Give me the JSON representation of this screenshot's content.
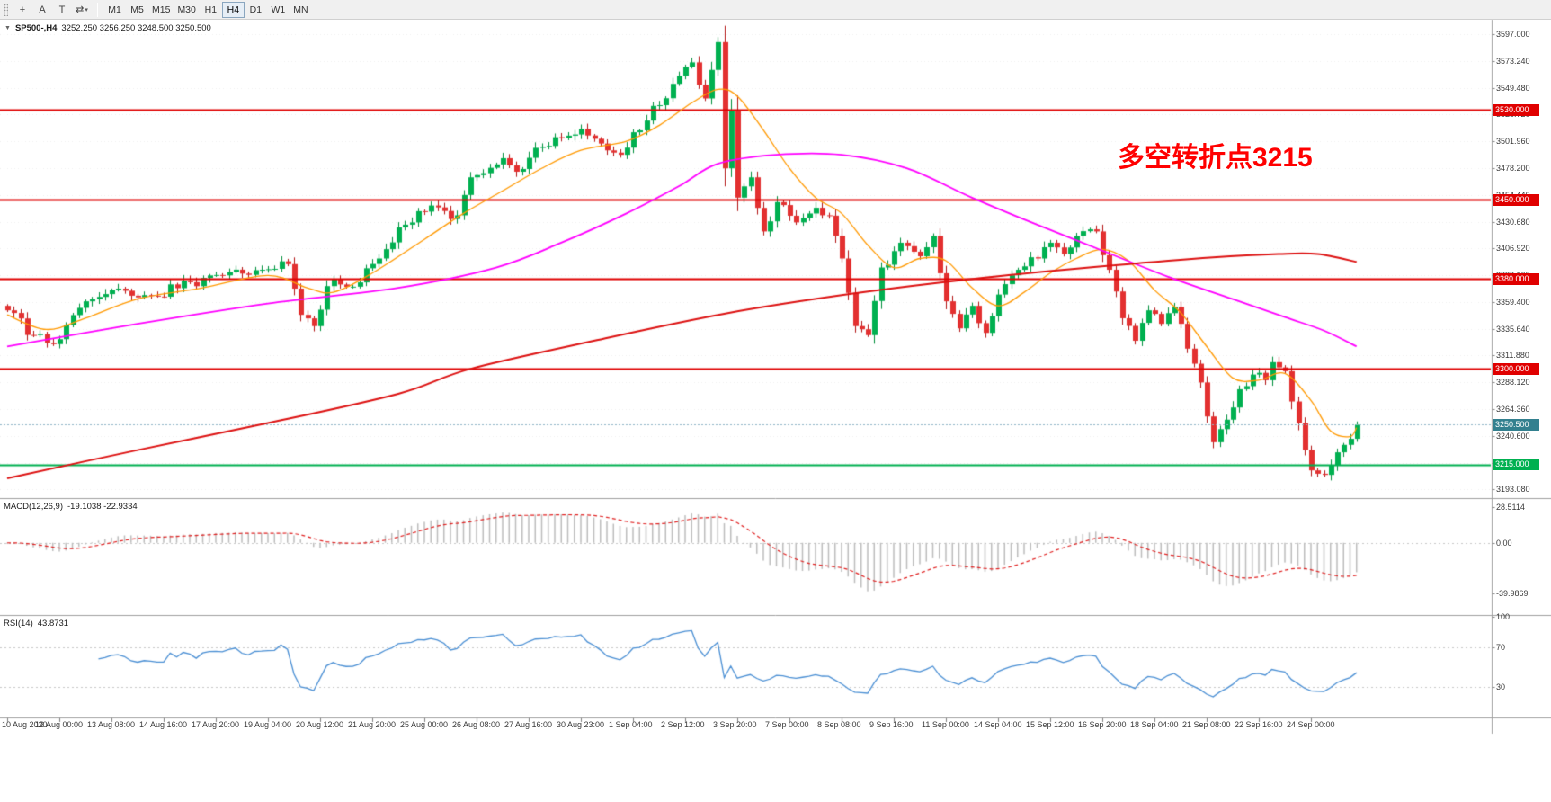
{
  "toolbar": {
    "caret_glyph": "▾",
    "tool_icons": [
      {
        "name": "crosshair-icon",
        "glyph": "+"
      },
      {
        "name": "text-label-icon",
        "glyph": "A"
      },
      {
        "name": "text-icon",
        "glyph": "T"
      },
      {
        "name": "line-studies-icon",
        "glyph": "⇄",
        "dropdown": true
      }
    ],
    "timeframes": [
      {
        "label": "M1",
        "active": false
      },
      {
        "label": "M5",
        "active": false
      },
      {
        "label": "M15",
        "active": false
      },
      {
        "label": "M30",
        "active": false
      },
      {
        "label": "H1",
        "active": false
      },
      {
        "label": "H4",
        "active": true
      },
      {
        "label": "D1",
        "active": false
      },
      {
        "label": "W1",
        "active": false
      },
      {
        "label": "MN",
        "active": false
      }
    ]
  },
  "chart": {
    "title": {
      "dropdown_glyph": "▼",
      "symbol": "SP500-,H4",
      "ohlc": "3252.250 3256.250 3248.500 3250.500"
    },
    "annotation": {
      "text": "多空转折点3215",
      "color": "#ff0000"
    }
  },
  "chart_data": {
    "type": "candlestick",
    "symbol": "SP500-",
    "timeframe": "H4",
    "bars": 208,
    "seed": 20200924,
    "noise": 4.2,
    "price_axis": {
      "min": 3187,
      "max": 3609,
      "tick_labels": [
        "3597.000",
        "3573.240",
        "3549.480",
        "3525.720",
        "3501.960",
        "3478.200",
        "3454.440",
        "3430.680",
        "3406.920",
        "3383.160",
        "3359.400",
        "3335.640",
        "3311.880",
        "3288.120",
        "3264.360",
        "3240.600",
        "3216.840",
        "3193.080"
      ]
    },
    "time_labels": [
      "10 Aug 2020",
      "12 Aug 00:00",
      "13 Aug 08:00",
      "14 Aug 16:00",
      "17 Aug 20:00",
      "19 Aug 04:00",
      "20 Aug 12:00",
      "21 Aug 20:00",
      "25 Aug 00:00",
      "26 Aug 08:00",
      "27 Aug 16:00",
      "30 Aug 23:00",
      "1 Sep 04:00",
      "2 Sep 12:00",
      "3 Sep 20:00",
      "7 Sep 00:00",
      "8 Sep 08:00",
      "9 Sep 16:00",
      "11 Sep 00:00",
      "14 Sep 04:00",
      "15 Sep 12:00",
      "16 Sep 20:00",
      "18 Sep 04:00",
      "21 Sep 08:00",
      "22 Sep 16:00",
      "24 Sep 00:00"
    ],
    "close_path_anchors": [
      [
        0,
        3352
      ],
      [
        4,
        3330
      ],
      [
        7,
        3322
      ],
      [
        12,
        3360
      ],
      [
        16,
        3370
      ],
      [
        22,
        3365
      ],
      [
        28,
        3377
      ],
      [
        33,
        3383
      ],
      [
        39,
        3388
      ],
      [
        43,
        3393
      ],
      [
        45,
        3348
      ],
      [
        47,
        3338
      ],
      [
        50,
        3380
      ],
      [
        53,
        3373
      ],
      [
        57,
        3398
      ],
      [
        61,
        3428
      ],
      [
        65,
        3445
      ],
      [
        68,
        3433
      ],
      [
        72,
        3472
      ],
      [
        76,
        3487
      ],
      [
        78,
        3475
      ],
      [
        82,
        3497
      ],
      [
        85,
        3505
      ],
      [
        88,
        3513
      ],
      [
        91,
        3500
      ],
      [
        94,
        3490
      ],
      [
        96,
        3510
      ],
      [
        100,
        3534
      ],
      [
        103,
        3560
      ],
      [
        105,
        3572
      ],
      [
        107,
        3540
      ],
      [
        109,
        3590
      ],
      [
        110,
        3478
      ],
      [
        111,
        3530
      ],
      [
        112,
        3452
      ],
      [
        114,
        3470
      ],
      [
        116,
        3422
      ],
      [
        118,
        3448
      ],
      [
        121,
        3430
      ],
      [
        124,
        3443
      ],
      [
        126,
        3436
      ],
      [
        128,
        3398
      ],
      [
        130,
        3338
      ],
      [
        132,
        3330
      ],
      [
        134,
        3390
      ],
      [
        137,
        3412
      ],
      [
        140,
        3400
      ],
      [
        142,
        3418
      ],
      [
        144,
        3360
      ],
      [
        146,
        3336
      ],
      [
        148,
        3356
      ],
      [
        150,
        3332
      ],
      [
        152,
        3366
      ],
      [
        155,
        3388
      ],
      [
        158,
        3398
      ],
      [
        160,
        3412
      ],
      [
        162,
        3402
      ],
      [
        164,
        3418
      ],
      [
        167,
        3422
      ],
      [
        169,
        3388
      ],
      [
        171,
        3345
      ],
      [
        173,
        3325
      ],
      [
        175,
        3352
      ],
      [
        177,
        3340
      ],
      [
        179,
        3355
      ],
      [
        181,
        3318
      ],
      [
        183,
        3288
      ],
      [
        185,
        3235
      ],
      [
        187,
        3255
      ],
      [
        189,
        3282
      ],
      [
        191,
        3295
      ],
      [
        193,
        3290
      ],
      [
        194,
        3306
      ],
      [
        196,
        3298
      ],
      [
        198,
        3252
      ],
      [
        200,
        3210
      ],
      [
        202,
        3206
      ],
      [
        204,
        3226
      ],
      [
        206,
        3238
      ],
      [
        207,
        3250.5
      ]
    ],
    "moving_averages": [
      {
        "name": "ma-fast",
        "color": "#ff9900",
        "width": 1.3,
        "anchors": [
          [
            0,
            3348
          ],
          [
            6,
            3335
          ],
          [
            12,
            3345
          ],
          [
            20,
            3362
          ],
          [
            30,
            3372
          ],
          [
            40,
            3383
          ],
          [
            46,
            3372
          ],
          [
            50,
            3368
          ],
          [
            56,
            3385
          ],
          [
            64,
            3415
          ],
          [
            70,
            3438
          ],
          [
            76,
            3458
          ],
          [
            82,
            3478
          ],
          [
            88,
            3494
          ],
          [
            95,
            3502
          ],
          [
            100,
            3516
          ],
          [
            105,
            3536
          ],
          [
            109,
            3548
          ],
          [
            112,
            3542
          ],
          [
            116,
            3512
          ],
          [
            120,
            3478
          ],
          [
            124,
            3452
          ],
          [
            128,
            3438
          ],
          [
            132,
            3410
          ],
          [
            136,
            3390
          ],
          [
            140,
            3398
          ],
          [
            144,
            3396
          ],
          [
            148,
            3372
          ],
          [
            152,
            3356
          ],
          [
            156,
            3368
          ],
          [
            160,
            3385
          ],
          [
            164,
            3398
          ],
          [
            168,
            3406
          ],
          [
            172,
            3396
          ],
          [
            176,
            3370
          ],
          [
            180,
            3350
          ],
          [
            184,
            3320
          ],
          [
            188,
            3292
          ],
          [
            192,
            3290
          ],
          [
            196,
            3296
          ],
          [
            200,
            3272
          ],
          [
            203,
            3245
          ],
          [
            206,
            3240
          ],
          [
            207,
            3248
          ]
        ]
      },
      {
        "name": "ma-medium",
        "color": "#ff00ff",
        "width": 1.8,
        "anchors": [
          [
            0,
            3320
          ],
          [
            20,
            3340
          ],
          [
            40,
            3358
          ],
          [
            60,
            3372
          ],
          [
            75,
            3390
          ],
          [
            85,
            3412
          ],
          [
            95,
            3438
          ],
          [
            103,
            3462
          ],
          [
            109,
            3482
          ],
          [
            118,
            3490
          ],
          [
            128,
            3490
          ],
          [
            138,
            3478
          ],
          [
            148,
            3452
          ],
          [
            158,
            3428
          ],
          [
            168,
            3405
          ],
          [
            178,
            3382
          ],
          [
            188,
            3362
          ],
          [
            196,
            3346
          ],
          [
            202,
            3334
          ],
          [
            207,
            3320
          ]
        ]
      },
      {
        "name": "ma-slow",
        "color": "#dd1111",
        "width": 2,
        "anchors": [
          [
            0,
            3203
          ],
          [
            20,
            3228
          ],
          [
            40,
            3252
          ],
          [
            60,
            3278
          ],
          [
            71,
            3300
          ],
          [
            90,
            3325
          ],
          [
            110,
            3349
          ],
          [
            130,
            3367
          ],
          [
            150,
            3381
          ],
          [
            170,
            3392
          ],
          [
            185,
            3399
          ],
          [
            195,
            3402
          ],
          [
            201,
            3402
          ],
          [
            207,
            3395
          ]
        ]
      }
    ],
    "horizontal_lines": [
      {
        "price": 3530.0,
        "label": "3530.000",
        "color": "#e00000"
      },
      {
        "price": 3450.0,
        "label": "3450.000",
        "color": "#e00000"
      },
      {
        "price": 3380.0,
        "label": "3380.000",
        "color": "#e00000"
      },
      {
        "price": 3300.0,
        "label": "3300.000",
        "color": "#e00000"
      },
      {
        "price": 3215.0,
        "label": "3215.000",
        "color": "#00b050"
      }
    ],
    "current_price": {
      "value": 3250.5,
      "label": "3250.500",
      "badge_color": "#33808f",
      "line_color": "#8fb6c7"
    },
    "indicators": {
      "macd": {
        "label": "MACD(12,26,9)",
        "values": "-19.1038 -22.9334",
        "scale": [
          -55,
          34
        ],
        "scale_labels": [
          "28.5114",
          "0.00",
          "-39.9869"
        ],
        "histogram_color": "#bdbdbd",
        "signal_color": "#e02020"
      },
      "rsi": {
        "label": "RSI(14)",
        "values": "43.8731",
        "levels": [
          70,
          30
        ],
        "scale_labels": [
          "100",
          "70",
          "30"
        ],
        "line_color": "#4a8fd4",
        "level_color": "#c8c8c8"
      }
    },
    "candle_colors": {
      "up_fill": "#00b050",
      "up_stroke": "#008f3c",
      "down_fill": "#e33030",
      "down_stroke": "#b31515"
    }
  }
}
